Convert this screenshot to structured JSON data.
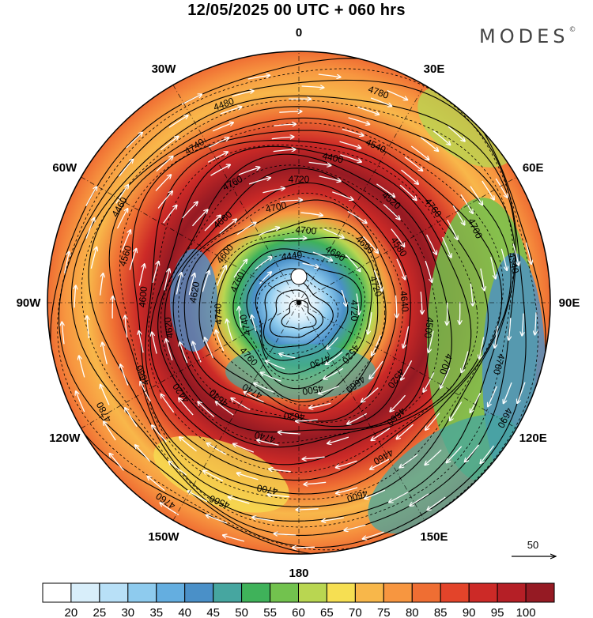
{
  "title": "12/05/2025  00 UTC  + 060 hrs",
  "brand": "MODES",
  "brand_mark": "©",
  "longitude_labels": [
    {
      "text": "0",
      "lon": 0
    },
    {
      "text": "30E",
      "lon": 30
    },
    {
      "text": "60E",
      "lon": 60
    },
    {
      "text": "90E",
      "lon": 90
    },
    {
      "text": "120E",
      "lon": 120
    },
    {
      "text": "150E",
      "lon": 150
    },
    {
      "text": "180",
      "lon": 180
    },
    {
      "text": "150W",
      "lon": -150
    },
    {
      "text": "120W",
      "lon": -120
    },
    {
      "text": "90W",
      "lon": -90
    },
    {
      "text": "60W",
      "lon": -60
    },
    {
      "text": "30W",
      "lon": -30
    }
  ],
  "colorbar": {
    "colors": [
      "#ffffff",
      "#d8eefa",
      "#b8e0f7",
      "#8ecbee",
      "#64aee0",
      "#4a90c8",
      "#46a6a0",
      "#3fb25a",
      "#72c24e",
      "#b9d651",
      "#f6df52",
      "#f8b74a",
      "#f79640",
      "#ef6e33",
      "#e3442a",
      "#cc2a27",
      "#b51f26",
      "#951a23"
    ],
    "ticks": [
      "20",
      "25",
      "30",
      "35",
      "40",
      "45",
      "50",
      "55",
      "60",
      "65",
      "70",
      "75",
      "80",
      "85",
      "90",
      "95",
      "100"
    ]
  },
  "wind_scale": {
    "value": "50"
  },
  "contour_labels": [
    "4720",
    "4760",
    "4700",
    "4660",
    "4620",
    "4580",
    "4740",
    "4760",
    "4700",
    "4660",
    "4540",
    "4600",
    "4460",
    "4340",
    "4760",
    "4440",
    "4520",
    "4740",
    "4690",
    "4620",
    "4660",
    "4500",
    "4420",
    "4400",
    "4460",
    "4560",
    "4700",
    "4500",
    "4480",
    "4690",
    "4740",
    "4680",
    "4500",
    "4600",
    "4640",
    "4640",
    "4720",
    "4660",
    "4600",
    "4760",
    "4700",
    "4740",
    "4760",
    "4780",
    "4780",
    "4730",
    "4760",
    "4720",
    "4740",
    "4700",
    "4520",
    "4620",
    "4520"
  ]
}
